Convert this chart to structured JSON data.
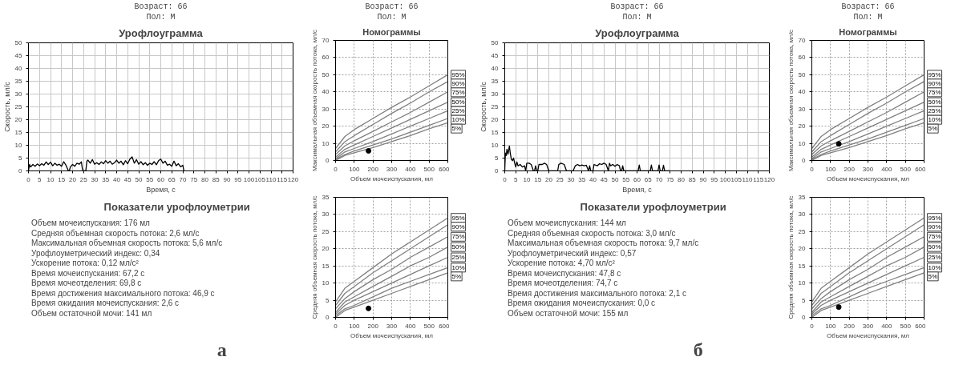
{
  "chart_data": [
    {
      "type": "line",
      "title": "Урофлоуграмма",
      "annotations": [
        "Возраст: 66",
        "Пол: М"
      ],
      "xlabel": "Время, с",
      "ylabel": "Скорость, мл/с",
      "xlim": [
        0,
        120
      ],
      "ylim": [
        0,
        50
      ],
      "xticks": [
        0,
        5,
        10,
        15,
        20,
        25,
        30,
        35,
        40,
        45,
        50,
        55,
        60,
        65,
        70,
        75,
        80,
        85,
        90,
        95,
        100,
        105,
        110,
        115,
        120
      ],
      "yticks": [
        0,
        5,
        10,
        15,
        20,
        25,
        30,
        35,
        40,
        45,
        50
      ],
      "grid": true,
      "legend": false,
      "series": [
        {
          "color": "#000000",
          "x": [
            0,
            0.5,
            1,
            2,
            3,
            4,
            5,
            6,
            7,
            8,
            9,
            10,
            11,
            12,
            13,
            14,
            15,
            16,
            17,
            18,
            18.5,
            19,
            20,
            21,
            22,
            23,
            24,
            24.5,
            25,
            26,
            26.5,
            27,
            28,
            29,
            30,
            31,
            32,
            33,
            34,
            35,
            36,
            37,
            38,
            39,
            40,
            41,
            42,
            43,
            44,
            45,
            46,
            47,
            48,
            49,
            50,
            51,
            52,
            53,
            54,
            55,
            56,
            57,
            58,
            59,
            60,
            61,
            62,
            63,
            64,
            65,
            66,
            67,
            68,
            69,
            70,
            70.5
          ],
          "values": [
            0,
            2.5,
            1.5,
            2.5,
            1.8,
            2.7,
            2.0,
            2.8,
            2.2,
            3.5,
            2.5,
            3.4,
            2.0,
            3.0,
            2.2,
            2.6,
            1.8,
            3.6,
            2.2,
            0.2,
            0,
            1.5,
            2.5,
            1.8,
            3.0,
            2.6,
            3.5,
            0.5,
            0,
            0,
            3.8,
            4.2,
            3.0,
            4.4,
            2.6,
            3.2,
            2.5,
            3.5,
            2.8,
            4.0,
            3.0,
            3.8,
            2.6,
            3.2,
            4.2,
            3.0,
            3.8,
            2.4,
            4.0,
            2.8,
            4.6,
            5.5,
            3.0,
            4.4,
            2.6,
            3.6,
            2.4,
            3.2,
            2.2,
            3.0,
            2.5,
            3.6,
            2.4,
            4.0,
            4.6,
            3.0,
            3.8,
            2.2,
            2.6,
            1.8,
            3.8,
            2.0,
            2.8,
            1.6,
            2.2,
            0
          ]
        }
      ]
    },
    {
      "type": "other",
      "title": "Показатели урофлоуметрии",
      "annotations": [
        "Объем мочеиспускания: 176 мл",
        "Средняя объемная скорость потока: 2,6 мл/с",
        "Максимальная объемная скорость потока: 5,6 мл/с",
        "Урофлоуметрический индекс: 0,34",
        "Ускорение потока: 0,12 мл/с²",
        "Время мочеиспускания: 67,2 с",
        "Время мочеотделения: 69,8 с",
        "Время достижения максимального потока: 46,9 с",
        "Время ожидания мочеиспускания: 2,6 с",
        "Объем остаточной мочи: 141 мл"
      ]
    },
    {
      "type": "other",
      "title": "а"
    },
    {
      "type": "line",
      "title": "Номограммы",
      "annotations": [
        "Возраст: 66",
        "Пол: М"
      ],
      "xlabel": "Объем мочеиспускания, мл",
      "ylabel": "Максимальная объемная скорость потока, мл/с",
      "xlim": [
        0,
        600
      ],
      "ylim": [
        0,
        70
      ],
      "xticks": [
        0,
        100,
        200,
        300,
        400,
        500,
        600
      ],
      "yticks": [
        0,
        10,
        20,
        30,
        40,
        50,
        60,
        70
      ],
      "grid": true,
      "legend": false,
      "x": [
        0,
        50,
        100,
        200,
        300,
        400,
        500,
        600
      ],
      "series": [
        {
          "name": "95%",
          "color": "#808080",
          "values": [
            7,
            14,
            18,
            24.5,
            31,
            37,
            43.5,
            50
          ]
        },
        {
          "name": "90%",
          "color": "#808080",
          "values": [
            5,
            11,
            14.5,
            21,
            27.5,
            33.5,
            40,
            46
          ]
        },
        {
          "name": "75%",
          "color": "#808080",
          "values": [
            3.5,
            8.5,
            11.5,
            17,
            22.5,
            28,
            34,
            40
          ]
        },
        {
          "name": "50%",
          "color": "#808080",
          "values": [
            2,
            6.5,
            9,
            14,
            19,
            24,
            29,
            34
          ]
        },
        {
          "name": "25%",
          "color": "#808080",
          "values": [
            1,
            5,
            7,
            11,
            15.5,
            20,
            24.5,
            29
          ]
        },
        {
          "name": "10%",
          "color": "#808080",
          "values": [
            0.5,
            3.5,
            5.5,
            9,
            12.5,
            16.5,
            20.5,
            24.5
          ]
        },
        {
          "name": "5%",
          "color": "#808080",
          "values": [
            0,
            3,
            4.5,
            7.5,
            11,
            14.5,
            18.5,
            22
          ]
        },
        {
          "type": "scatter",
          "color": "#000000",
          "x": [
            176
          ],
          "values": [
            5.6
          ]
        }
      ]
    },
    {
      "type": "line",
      "xlabel": "Объем мочеиспускания, мл",
      "ylabel": "Средняя объемная скорость потока, мл/с",
      "xlim": [
        0,
        600
      ],
      "ylim": [
        0,
        35
      ],
      "xticks": [
        0,
        100,
        200,
        300,
        400,
        500,
        600
      ],
      "yticks": [
        0,
        5,
        10,
        15,
        20,
        25,
        30,
        35
      ],
      "grid": true,
      "legend": false,
      "x": [
        0,
        50,
        100,
        200,
        300,
        400,
        500,
        600
      ],
      "series": [
        {
          "name": "95%",
          "color": "#808080",
          "values": [
            4.5,
            8.5,
            10.5,
            14.5,
            18.5,
            22,
            25.5,
            29
          ]
        },
        {
          "name": "90%",
          "color": "#808080",
          "values": [
            3.5,
            7,
            9,
            13,
            16.5,
            20,
            23.5,
            27
          ]
        },
        {
          "name": "75%",
          "color": "#808080",
          "values": [
            2.5,
            5.5,
            7.5,
            11,
            14,
            17.5,
            20.5,
            23.5
          ]
        },
        {
          "name": "50%",
          "color": "#808080",
          "values": [
            1.5,
            4.5,
            6,
            9,
            12,
            15,
            17.5,
            20.5
          ]
        },
        {
          "name": "25%",
          "color": "#808080",
          "values": [
            1,
            3.5,
            5,
            7.5,
            10,
            12.5,
            15,
            17.5
          ]
        },
        {
          "name": "10%",
          "color": "#808080",
          "values": [
            0.5,
            2.5,
            3.5,
            6,
            8.5,
            10.5,
            12.5,
            14.5
          ]
        },
        {
          "name": "5%",
          "color": "#808080",
          "values": [
            0,
            2,
            3,
            5,
            7,
            9,
            11,
            13
          ]
        },
        {
          "type": "scatter",
          "color": "#000000",
          "x": [
            176
          ],
          "values": [
            2.6
          ]
        }
      ]
    },
    {
      "type": "line",
      "title": "Урофлоуграмма",
      "annotations": [
        "Возраст: 66",
        "Пол: М"
      ],
      "xlabel": "Время, с",
      "ylabel": "Скорость, мл/с",
      "xlim": [
        0,
        120
      ],
      "ylim": [
        0,
        50
      ],
      "xticks": [
        0,
        5,
        10,
        15,
        20,
        25,
        30,
        35,
        40,
        45,
        50,
        55,
        60,
        65,
        70,
        75,
        80,
        85,
        90,
        95,
        100,
        105,
        110,
        115,
        120
      ],
      "yticks": [
        0,
        5,
        10,
        15,
        20,
        25,
        30,
        35,
        40,
        45,
        50
      ],
      "grid": true,
      "legend": false,
      "series": [
        {
          "color": "#000000",
          "x": [
            0,
            0.3,
            0.7,
            1,
            1.5,
            2.1,
            2.5,
            3,
            3.5,
            4,
            4.5,
            5,
            5.5,
            6,
            7,
            8,
            9,
            9.5,
            10,
            11,
            12,
            13,
            13.5,
            14,
            14.5,
            15,
            15.5,
            17,
            18,
            19,
            20,
            21,
            22,
            24,
            24.5,
            25.5,
            27,
            28,
            31,
            32,
            33,
            34,
            35,
            36,
            37,
            38,
            38.5,
            39,
            40,
            40.5,
            42,
            43,
            44,
            45,
            46,
            47,
            47.5,
            48,
            49,
            50,
            51,
            52,
            52.5,
            53,
            53.5,
            54,
            60.5,
            61,
            61.5,
            66,
            66.5,
            67,
            69.5,
            70,
            70.5,
            71.5,
            72,
            72.5,
            75
          ],
          "values": [
            0,
            7,
            6,
            8.5,
            6.5,
            9.7,
            7,
            4.5,
            4,
            5,
            3,
            1.5,
            3.5,
            2,
            2.5,
            1.5,
            2,
            0,
            3,
            3,
            2.5,
            0,
            0,
            2,
            0,
            0,
            2.5,
            2.5,
            3,
            2.5,
            0,
            0,
            0,
            0,
            2.5,
            3,
            2.5,
            0,
            0,
            2,
            2.5,
            2,
            2.3,
            2,
            2.2,
            0,
            2,
            0,
            0,
            2.5,
            2,
            2.8,
            2.5,
            3,
            2.5,
            0,
            3,
            2,
            2.5,
            1.8,
            2.5,
            2,
            0,
            0,
            2,
            0,
            0,
            2.3,
            0,
            0,
            2.3,
            0,
            0,
            2.3,
            0,
            0,
            2.2,
            0,
            0
          ]
        }
      ]
    },
    {
      "type": "other",
      "title": "Показатели урофлоуметрии",
      "annotations": [
        "Объем мочеиспускания: 144 мл",
        "Средняя объемная скорость потока: 3,0 мл/с",
        "Максимальная объемная скорость потока: 9,7 мл/с",
        "Урофлоуметрический индекс: 0,57",
        "Ускорение потока: 4,70 мл/с²",
        "Время мочеиспускания: 47,8 с",
        "Время мочеотделения: 74,7 с",
        "Время достижения максимального потока: 2,1 с",
        "Время ожидания мочеиспускания: 0,0 с",
        "Объем остаточной мочи: 155 мл"
      ]
    },
    {
      "type": "other",
      "title": "б"
    },
    {
      "type": "line",
      "title": "Номограммы",
      "annotations": [
        "Возраст: 66",
        "Пол: М"
      ],
      "xlabel": "Объем мочеиспускания, мл",
      "ylabel": "Максимальная объемная скорость потока, мл/с",
      "xlim": [
        0,
        600
      ],
      "ylim": [
        0,
        70
      ],
      "xticks": [
        0,
        100,
        200,
        300,
        400,
        500,
        600
      ],
      "yticks": [
        0,
        10,
        20,
        30,
        40,
        50,
        60,
        70
      ],
      "grid": true,
      "legend": false,
      "x": [
        0,
        50,
        100,
        200,
        300,
        400,
        500,
        600
      ],
      "series": [
        {
          "name": "95%",
          "color": "#808080",
          "values": [
            7,
            14,
            18,
            24.5,
            31,
            37,
            43.5,
            50
          ]
        },
        {
          "name": "90%",
          "color": "#808080",
          "values": [
            5,
            11,
            14.5,
            21,
            27.5,
            33.5,
            40,
            46
          ]
        },
        {
          "name": "75%",
          "color": "#808080",
          "values": [
            3.5,
            8.5,
            11.5,
            17,
            22.5,
            28,
            34,
            40
          ]
        },
        {
          "name": "50%",
          "color": "#808080",
          "values": [
            2,
            6.5,
            9,
            14,
            19,
            24,
            29,
            34
          ]
        },
        {
          "name": "25%",
          "color": "#808080",
          "values": [
            1,
            5,
            7,
            11,
            15.5,
            20,
            24.5,
            29
          ]
        },
        {
          "name": "10%",
          "color": "#808080",
          "values": [
            0.5,
            3.5,
            5.5,
            9,
            12.5,
            16.5,
            20.5,
            24.5
          ]
        },
        {
          "name": "5%",
          "color": "#808080",
          "values": [
            0,
            3,
            4.5,
            7.5,
            11,
            14.5,
            18.5,
            22
          ]
        },
        {
          "type": "scatter",
          "color": "#000000",
          "x": [
            144
          ],
          "values": [
            9.7
          ]
        }
      ]
    },
    {
      "type": "line",
      "xlabel": "Объем мочеиспускания, мл",
      "ylabel": "Средняя объемная скорость потока, мл/с",
      "xlim": [
        0,
        600
      ],
      "ylim": [
        0,
        35
      ],
      "xticks": [
        0,
        100,
        200,
        300,
        400,
        500,
        600
      ],
      "yticks": [
        0,
        5,
        10,
        15,
        20,
        25,
        30,
        35
      ],
      "grid": true,
      "legend": false,
      "x": [
        0,
        50,
        100,
        200,
        300,
        400,
        500,
        600
      ],
      "series": [
        {
          "name": "95%",
          "color": "#808080",
          "values": [
            4.5,
            8.5,
            10.5,
            14.5,
            18.5,
            22,
            25.5,
            29
          ]
        },
        {
          "name": "90%",
          "color": "#808080",
          "values": [
            3.5,
            7,
            9,
            13,
            16.5,
            20,
            23.5,
            27
          ]
        },
        {
          "name": "75%",
          "color": "#808080",
          "values": [
            2.5,
            5.5,
            7.5,
            11,
            14,
            17.5,
            20.5,
            23.5
          ]
        },
        {
          "name": "50%",
          "color": "#808080",
          "values": [
            1.5,
            4.5,
            6,
            9,
            12,
            15,
            17.5,
            20.5
          ]
        },
        {
          "name": "25%",
          "color": "#808080",
          "values": [
            1,
            3.5,
            5,
            7.5,
            10,
            12.5,
            15,
            17.5
          ]
        },
        {
          "name": "10%",
          "color": "#808080",
          "values": [
            0.5,
            2.5,
            3.5,
            6,
            8.5,
            10.5,
            12.5,
            14.5
          ]
        },
        {
          "name": "5%",
          "color": "#808080",
          "values": [
            0,
            2,
            3,
            5,
            7,
            9,
            11,
            13
          ]
        },
        {
          "type": "scatter",
          "color": "#000000",
          "x": [
            144
          ],
          "values": [
            3.0
          ]
        }
      ]
    }
  ]
}
